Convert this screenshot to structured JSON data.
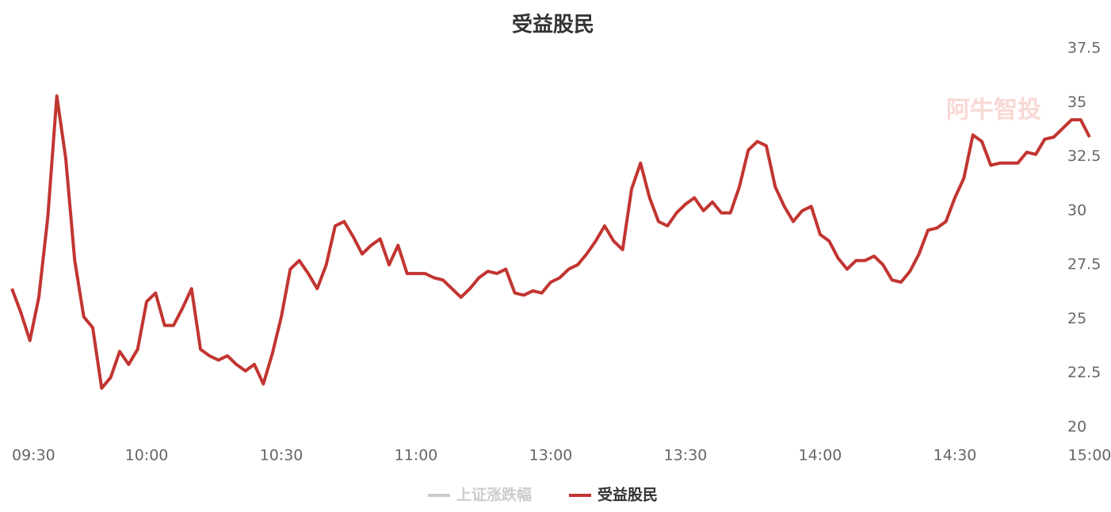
{
  "chart_data": {
    "type": "line",
    "title": "受益股民",
    "watermark": "阿牛智投",
    "categories": [
      "09:30",
      null,
      null,
      null,
      null,
      null,
      null,
      null,
      null,
      null,
      null,
      null,
      null,
      null,
      null,
      "10:00",
      null,
      null,
      null,
      null,
      null,
      null,
      null,
      null,
      null,
      null,
      null,
      null,
      null,
      null,
      "10:30",
      null,
      null,
      null,
      null,
      null,
      null,
      null,
      null,
      null,
      null,
      null,
      null,
      null,
      null,
      "11:00",
      null,
      null,
      null,
      null,
      null,
      null,
      null,
      null,
      null,
      null,
      null,
      null,
      null,
      null,
      "13:00",
      null,
      null,
      null,
      null,
      null,
      null,
      null,
      null,
      null,
      null,
      null,
      null,
      null,
      null,
      "13:30",
      null,
      null,
      null,
      null,
      null,
      null,
      null,
      null,
      null,
      null,
      null,
      null,
      null,
      null,
      "14:00",
      null,
      null,
      null,
      null,
      null,
      null,
      null,
      null,
      null,
      null,
      null,
      null,
      null,
      null,
      "14:30",
      null,
      null,
      null,
      null,
      null,
      null,
      null,
      null,
      null,
      null,
      null,
      null,
      null,
      null,
      "15:00"
    ],
    "series": [
      {
        "name": "上证涨跌幅",
        "color": "#cccccc",
        "values": [
          null,
          null,
          null,
          null,
          null,
          null,
          null,
          null,
          null,
          null,
          null,
          null,
          null,
          null,
          null,
          null,
          null,
          null,
          null,
          null,
          null,
          null,
          null,
          null,
          null,
          null,
          null,
          null,
          null,
          null,
          null,
          null,
          null,
          null,
          null,
          null,
          null,
          null,
          null,
          null,
          null,
          null,
          null,
          null,
          null,
          null,
          null,
          null,
          null,
          null,
          null,
          null,
          null,
          null,
          null,
          null,
          null,
          null,
          null,
          null,
          null,
          null,
          null,
          null,
          null,
          null,
          null,
          null,
          null,
          null,
          null,
          null,
          null,
          null,
          null,
          null,
          null,
          null,
          null,
          null,
          null,
          null,
          null,
          null,
          null,
          null,
          null,
          null,
          null,
          null,
          null,
          null,
          null,
          null,
          null,
          null,
          null,
          null,
          null,
          null,
          null,
          null,
          null,
          null,
          null,
          null,
          null,
          null,
          null,
          null,
          null,
          null,
          null,
          null,
          null,
          null,
          null,
          null,
          null,
          null,
          null
        ]
      },
      {
        "name": "受益股民",
        "color": "#c23531",
        "values": [
          26.4,
          25.3,
          24.0,
          26.0,
          29.7,
          35.3,
          32.4,
          27.7,
          25.1,
          24.6,
          21.8,
          22.3,
          23.5,
          22.9,
          23.6,
          25.8,
          26.2,
          24.7,
          24.7,
          25.5,
          26.4,
          23.6,
          23.3,
          23.1,
          23.3,
          22.9,
          22.6,
          22.9,
          22.0,
          23.4,
          25.1,
          27.3,
          27.7,
          27.1,
          26.4,
          27.5,
          29.3,
          29.5,
          28.8,
          28.0,
          28.4,
          28.7,
          27.5,
          28.4,
          27.1,
          27.1,
          27.1,
          26.9,
          26.8,
          26.4,
          26.0,
          26.4,
          26.9,
          27.2,
          27.1,
          27.3,
          26.2,
          26.1,
          26.3,
          26.2,
          26.7,
          26.9,
          27.3,
          27.5,
          28.0,
          28.6,
          29.3,
          28.6,
          28.2,
          31.0,
          32.2,
          30.6,
          29.5,
          29.3,
          29.9,
          30.3,
          30.6,
          30.0,
          30.4,
          29.9,
          29.9,
          31.1,
          32.8,
          33.2,
          33.0,
          31.1,
          30.2,
          29.5,
          30.0,
          30.2,
          28.9,
          28.6,
          27.8,
          27.3,
          27.7,
          27.7,
          27.9,
          27.5,
          26.8,
          26.7,
          27.2,
          28.0,
          29.1,
          29.2,
          29.5,
          30.6,
          31.5,
          33.5,
          33.2,
          32.1,
          32.2,
          32.2,
          32.2,
          32.7,
          32.6,
          33.3,
          33.4,
          33.8,
          34.2,
          34.2,
          33.4
        ]
      }
    ],
    "ylim": [
      20,
      37.5
    ],
    "yticks": [
      20,
      22.5,
      25,
      27.5,
      30,
      32.5,
      35,
      37.5
    ],
    "grid": false
  }
}
